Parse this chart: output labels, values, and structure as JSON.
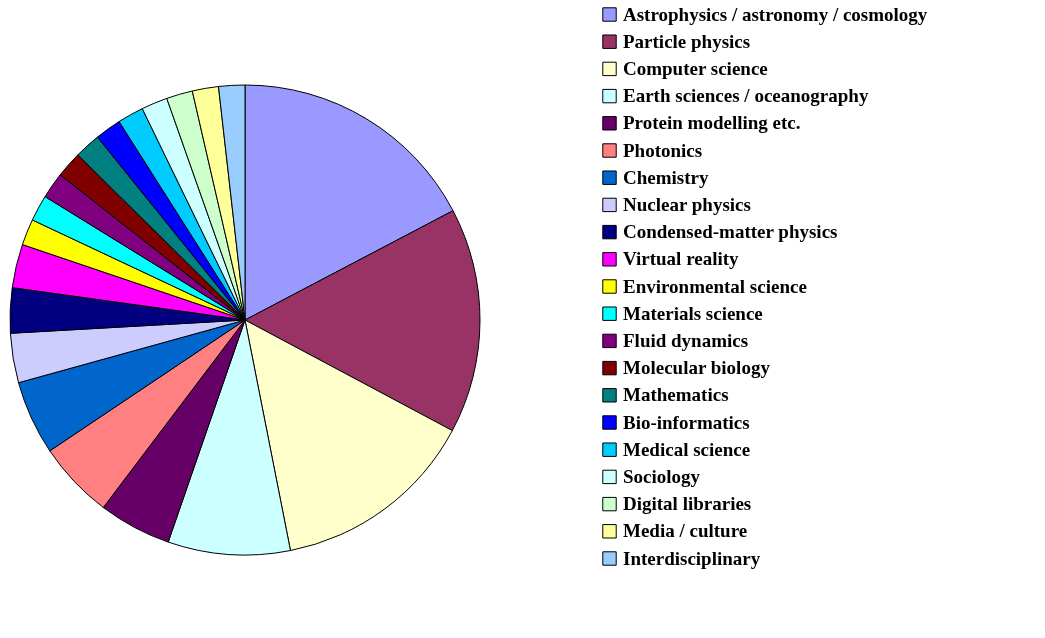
{
  "chart_data": {
    "type": "pie",
    "legend": "right",
    "categories": [
      "Astrophysics / astronomy / cosmology",
      "Particle physics",
      "Computer science",
      "Earth sciences / oceanography",
      "Protein modelling etc.",
      "Photonics",
      "Chemistry",
      "Nuclear physics",
      "Condensed-matter physics",
      "Virtual reality",
      "Environmental science",
      "Materials science",
      "Fluid dynamics",
      "Molecular biology",
      "Mathematics",
      "Bio-informatics",
      "Medical science",
      "Sociology",
      "Digital libraries",
      "Media / culture",
      "Interdisciplinary"
    ],
    "values": [
      17.3,
      15.5,
      14.1,
      8.4,
      5.0,
      5.3,
      5.1,
      3.4,
      3.1,
      3.0,
      1.8,
      1.8,
      1.8,
      1.8,
      1.8,
      1.8,
      1.8,
      1.8,
      1.8,
      1.8,
      1.8
    ],
    "colors": [
      "#9999ff",
      "#993366",
      "#ffffcc",
      "#ccffff",
      "#660066",
      "#ff8080",
      "#0066cc",
      "#ccccff",
      "#000080",
      "#ff00ff",
      "#ffff00",
      "#00ffff",
      "#800080",
      "#800000",
      "#008080",
      "#0000ff",
      "#00ccff",
      "#ccffff",
      "#ccffcc",
      "#ffff99",
      "#99ccff"
    ]
  }
}
